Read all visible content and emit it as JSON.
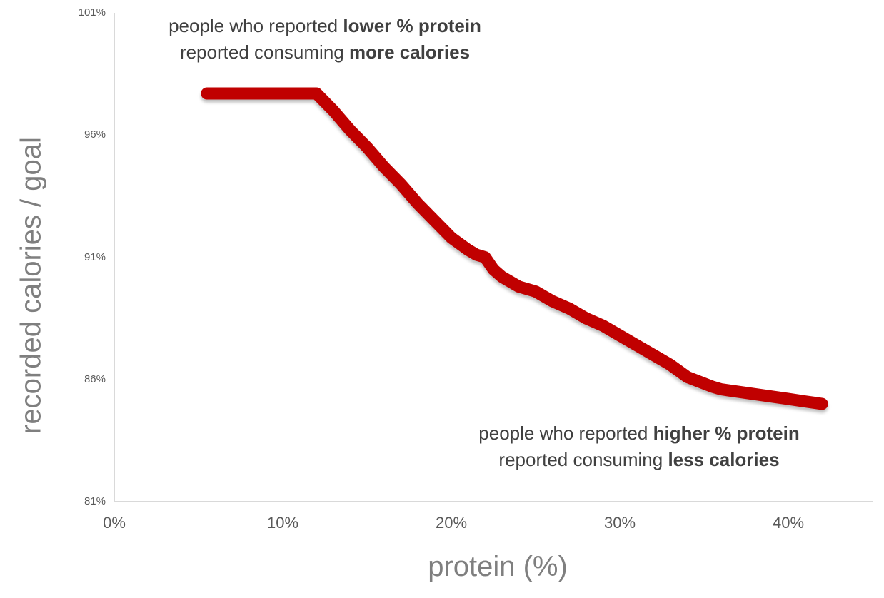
{
  "chart_data": {
    "type": "line",
    "title": "",
    "xlabel": "protein (%)",
    "ylabel": "recorded calories / goal",
    "xlim": [
      0,
      45
    ],
    "ylim": [
      81,
      101
    ],
    "grid": false,
    "legend": false,
    "x_ticks": [
      {
        "value": 0,
        "label": "0%"
      },
      {
        "value": 10,
        "label": "10%"
      },
      {
        "value": 20,
        "label": "20%"
      },
      {
        "value": 30,
        "label": "30%"
      },
      {
        "value": 40,
        "label": "40%"
      }
    ],
    "y_ticks": [
      {
        "value": 101,
        "label": "101%"
      },
      {
        "value": 96,
        "label": "96%"
      },
      {
        "value": 91,
        "label": "91%"
      },
      {
        "value": 86,
        "label": "86%"
      },
      {
        "value": 81,
        "label": "81%"
      }
    ],
    "series": [
      {
        "name": "recorded calories / goal vs protein %",
        "color": "#C00000",
        "x": [
          5.5,
          6,
          7,
          8,
          9,
          10,
          11,
          12,
          13,
          14,
          15,
          16,
          17,
          18,
          19,
          20,
          21,
          21.5,
          22,
          22.5,
          23,
          24,
          25,
          26,
          27,
          28,
          29,
          30,
          31,
          32,
          33,
          34,
          35.5,
          36,
          37,
          38,
          39,
          40,
          41,
          42
        ],
        "y": [
          97.7,
          97.7,
          97.7,
          97.7,
          97.7,
          97.7,
          97.7,
          97.7,
          97.0,
          96.2,
          95.5,
          94.7,
          94.0,
          93.2,
          92.5,
          91.8,
          91.3,
          91.1,
          91.0,
          90.5,
          90.2,
          89.8,
          89.6,
          89.2,
          88.9,
          88.5,
          88.2,
          87.8,
          87.4,
          87.0,
          86.6,
          86.1,
          85.7,
          85.6,
          85.5,
          85.4,
          85.3,
          85.2,
          85.1,
          85.0
        ]
      }
    ],
    "annotations": [
      {
        "id": "low-protein-note",
        "position": "top-left",
        "lines": [
          [
            {
              "text": "people who reported ",
              "bold": false
            },
            {
              "text": "lower % protein",
              "bold": true
            }
          ],
          [
            {
              "text": "reported consuming ",
              "bold": false
            },
            {
              "text": "more calories",
              "bold": true
            }
          ]
        ]
      },
      {
        "id": "high-protein-note",
        "position": "bottom-right",
        "lines": [
          [
            {
              "text": "people who reported ",
              "bold": false
            },
            {
              "text": "higher % protein",
              "bold": true
            }
          ],
          [
            {
              "text": "reported consuming ",
              "bold": false
            },
            {
              "text": "less calories",
              "bold": true
            }
          ]
        ]
      }
    ],
    "colors": {
      "line": "#C00000",
      "axis": "#D9D9D9",
      "tick_label": "#595959",
      "axis_title": "#7F7F7F",
      "annotation": "#404040",
      "background": "#FFFFFF"
    }
  }
}
